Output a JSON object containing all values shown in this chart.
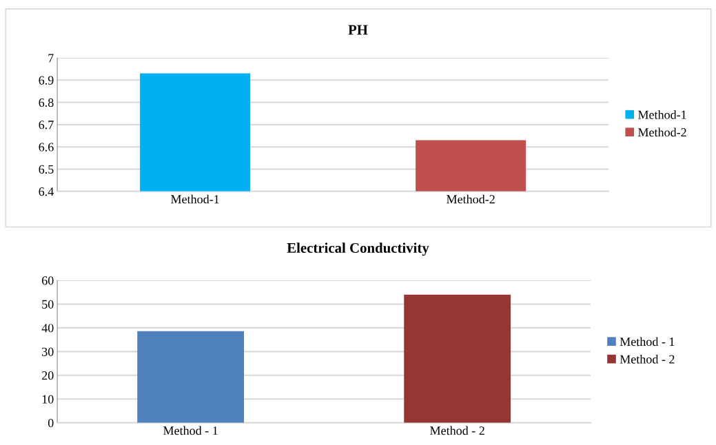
{
  "chart_data": [
    {
      "type": "bar",
      "title": "PH",
      "categories": [
        "Method-1",
        "Method-2"
      ],
      "series": [
        {
          "name": "Method-1",
          "color": "#00b0f0",
          "values": [
            6.93,
            null
          ]
        },
        {
          "name": "Method-2",
          "color": "#c0504d",
          "values": [
            null,
            6.63
          ]
        }
      ],
      "ylim": [
        6.4,
        7
      ],
      "yticks": [
        6.4,
        6.5,
        6.6,
        6.7,
        6.8,
        6.9,
        7
      ],
      "grid": "y",
      "legend": "right"
    },
    {
      "type": "bar",
      "title": "Electrical Conductivity",
      "categories": [
        "Method - 1",
        "Method - 2"
      ],
      "series": [
        {
          "name": "Method - 1",
          "color": "#4f81bd",
          "values": [
            38.6,
            null
          ]
        },
        {
          "name": "Method - 2",
          "color": "#943634",
          "values": [
            null,
            54
          ]
        }
      ],
      "ylim": [
        0,
        60
      ],
      "yticks": [
        0,
        10,
        20,
        30,
        40,
        50,
        60
      ],
      "grid": "y",
      "legend": "right"
    }
  ]
}
